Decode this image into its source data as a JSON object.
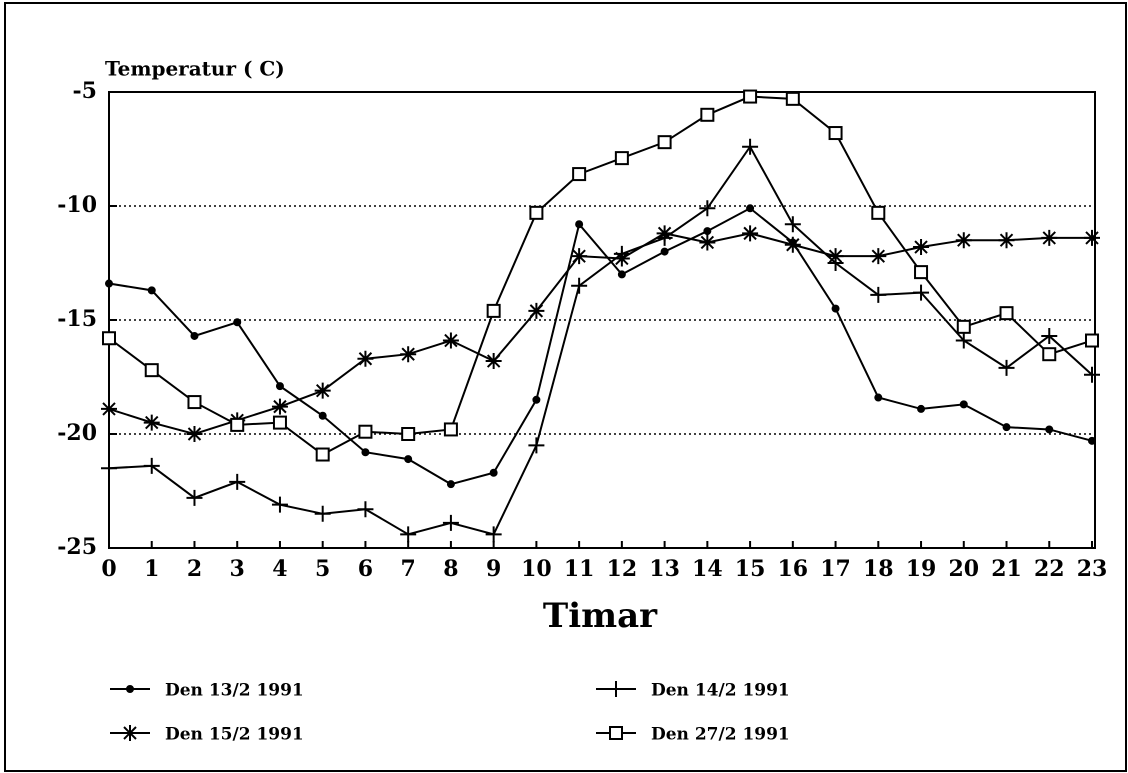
{
  "chart_data": {
    "type": "line",
    "y_label": "Temperatur ( C)",
    "x_label": "Timar",
    "x": [
      0,
      1,
      2,
      3,
      4,
      5,
      6,
      7,
      8,
      9,
      10,
      11,
      12,
      13,
      14,
      15,
      16,
      17,
      18,
      19,
      20,
      21,
      22,
      23
    ],
    "xlim": [
      0,
      23
    ],
    "xticks": [
      0,
      1,
      2,
      3,
      4,
      5,
      6,
      7,
      8,
      9,
      10,
      11,
      12,
      13,
      14,
      15,
      16,
      17,
      18,
      19,
      20,
      21,
      22,
      23
    ],
    "ylim": [
      -25,
      -5
    ],
    "yticks": [
      -5,
      -10,
      -15,
      -20,
      -25
    ],
    "grid": true,
    "series": [
      {
        "name": "Den 13/2 1991",
        "color": "#000000",
        "marker": "dot",
        "values": [
          -13.4,
          -13.7,
          -15.7,
          -15.1,
          -17.9,
          -19.2,
          -20.8,
          -21.1,
          -22.2,
          -21.7,
          -18.5,
          -10.8,
          -13.0,
          -12.0,
          -11.1,
          -10.1,
          -11.6,
          -14.5,
          -18.4,
          -18.9,
          -18.7,
          -19.7,
          -19.8,
          -20.3
        ]
      },
      {
        "name": "Den 14/2 1991",
        "color": "#000000",
        "marker": "plus",
        "values": [
          -21.5,
          -21.4,
          -22.8,
          -22.1,
          -23.1,
          -23.5,
          -23.3,
          -24.4,
          -23.9,
          -24.4,
          -20.5,
          -13.5,
          -12.1,
          -11.4,
          -10.1,
          -7.4,
          -10.8,
          -12.5,
          -13.9,
          -13.8,
          -15.9,
          -17.1,
          -15.7,
          -17.4
        ]
      },
      {
        "name": "Den 15/2 1991",
        "color": "#000000",
        "marker": "star",
        "values": [
          -18.9,
          -19.5,
          -20.0,
          -19.4,
          -18.8,
          -18.1,
          -16.7,
          -16.5,
          -15.9,
          -16.8,
          -14.6,
          -12.2,
          -12.3,
          -11.2,
          -11.6,
          -11.2,
          -11.7,
          -12.2,
          -12.2,
          -11.8,
          -11.5,
          -11.5,
          -11.4,
          -11.4
        ]
      },
      {
        "name": "Den 27/2 1991",
        "color": "#000000",
        "marker": "square",
        "values": [
          -15.8,
          -17.2,
          -18.6,
          -19.6,
          -19.5,
          -20.9,
          -19.9,
          -20.0,
          -19.8,
          -14.6,
          -10.3,
          -8.6,
          -7.9,
          -7.2,
          -6.0,
          -5.2,
          -5.3,
          -6.8,
          -10.3,
          -12.9,
          -15.3,
          -14.7,
          -16.5,
          -15.9
        ]
      }
    ]
  }
}
